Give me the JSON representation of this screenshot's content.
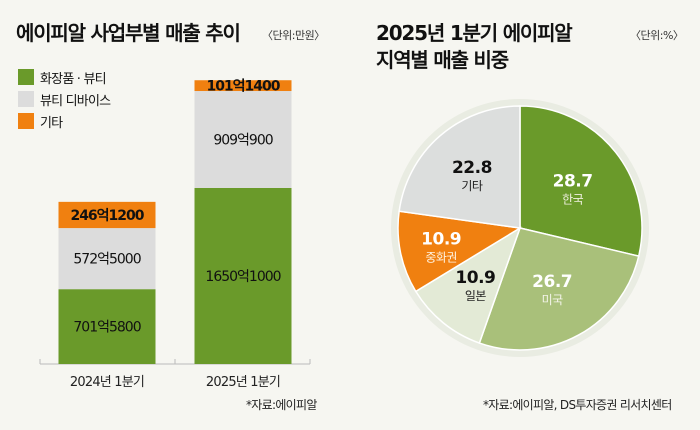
{
  "left_panel": {
    "title": "에이피알 사업부별 매출 추이",
    "unit": "〈단위:만원〉",
    "source": "*자료:에이피알"
  },
  "right_panel": {
    "title_line1": "2025년 1분기 에이피알",
    "title_line2": "지역별 매출 비중",
    "unit": "〈단위:%〉",
    "source": "*자료:에이피알, DS투자증권 리서치센터"
  },
  "colors": {
    "cosmetics": "#6a9a2a",
    "device": "#dcdcdc",
    "other": "#f08010",
    "korea": "#6a9a2a",
    "usa": "#a9c07a",
    "japan": "#e3ead6",
    "china": "#f08010",
    "etc": "#dcdedd"
  },
  "chart_data": [
    {
      "type": "bar",
      "stacked": true,
      "title": "에이피알 사업부별 매출 추이",
      "unit": "만원",
      "categories": [
        "2024년 1분기",
        "2025년 1분기"
      ],
      "legend": [
        "화장품 · 뷰티",
        "뷰티 디바이스",
        "기타"
      ],
      "legend_position": "top-left",
      "series": [
        {
          "name": "화장품 · 뷰티",
          "key": "cosmetics",
          "values": [
            7015800,
            16501000
          ],
          "labels": [
            "701억5800",
            "1650억1000"
          ]
        },
        {
          "name": "뷰티 디바이스",
          "key": "device",
          "values": [
            5725000,
            9090900
          ],
          "labels": [
            "572억5000",
            "909억900"
          ]
        },
        {
          "name": "기타",
          "key": "other",
          "values": [
            2461200,
            1011400
          ],
          "labels": [
            "246억1200",
            "101억1400"
          ]
        }
      ],
      "ylim": [
        0,
        27000000
      ],
      "grid": false
    },
    {
      "type": "pie",
      "title": "2025년 1분기 에이피알 지역별 매출 비중",
      "unit": "%",
      "slices": [
        {
          "name": "한국",
          "key": "korea",
          "value": 28.7,
          "label": "28.7"
        },
        {
          "name": "미국",
          "key": "usa",
          "value": 26.7,
          "label": "26.7"
        },
        {
          "name": "일본",
          "key": "japan",
          "value": 10.9,
          "label": "10.9"
        },
        {
          "name": "중화권",
          "key": "china",
          "value": 10.9,
          "label": "10.9"
        },
        {
          "name": "기타",
          "key": "etc",
          "value": 22.8,
          "label": "22.8"
        }
      ]
    }
  ]
}
